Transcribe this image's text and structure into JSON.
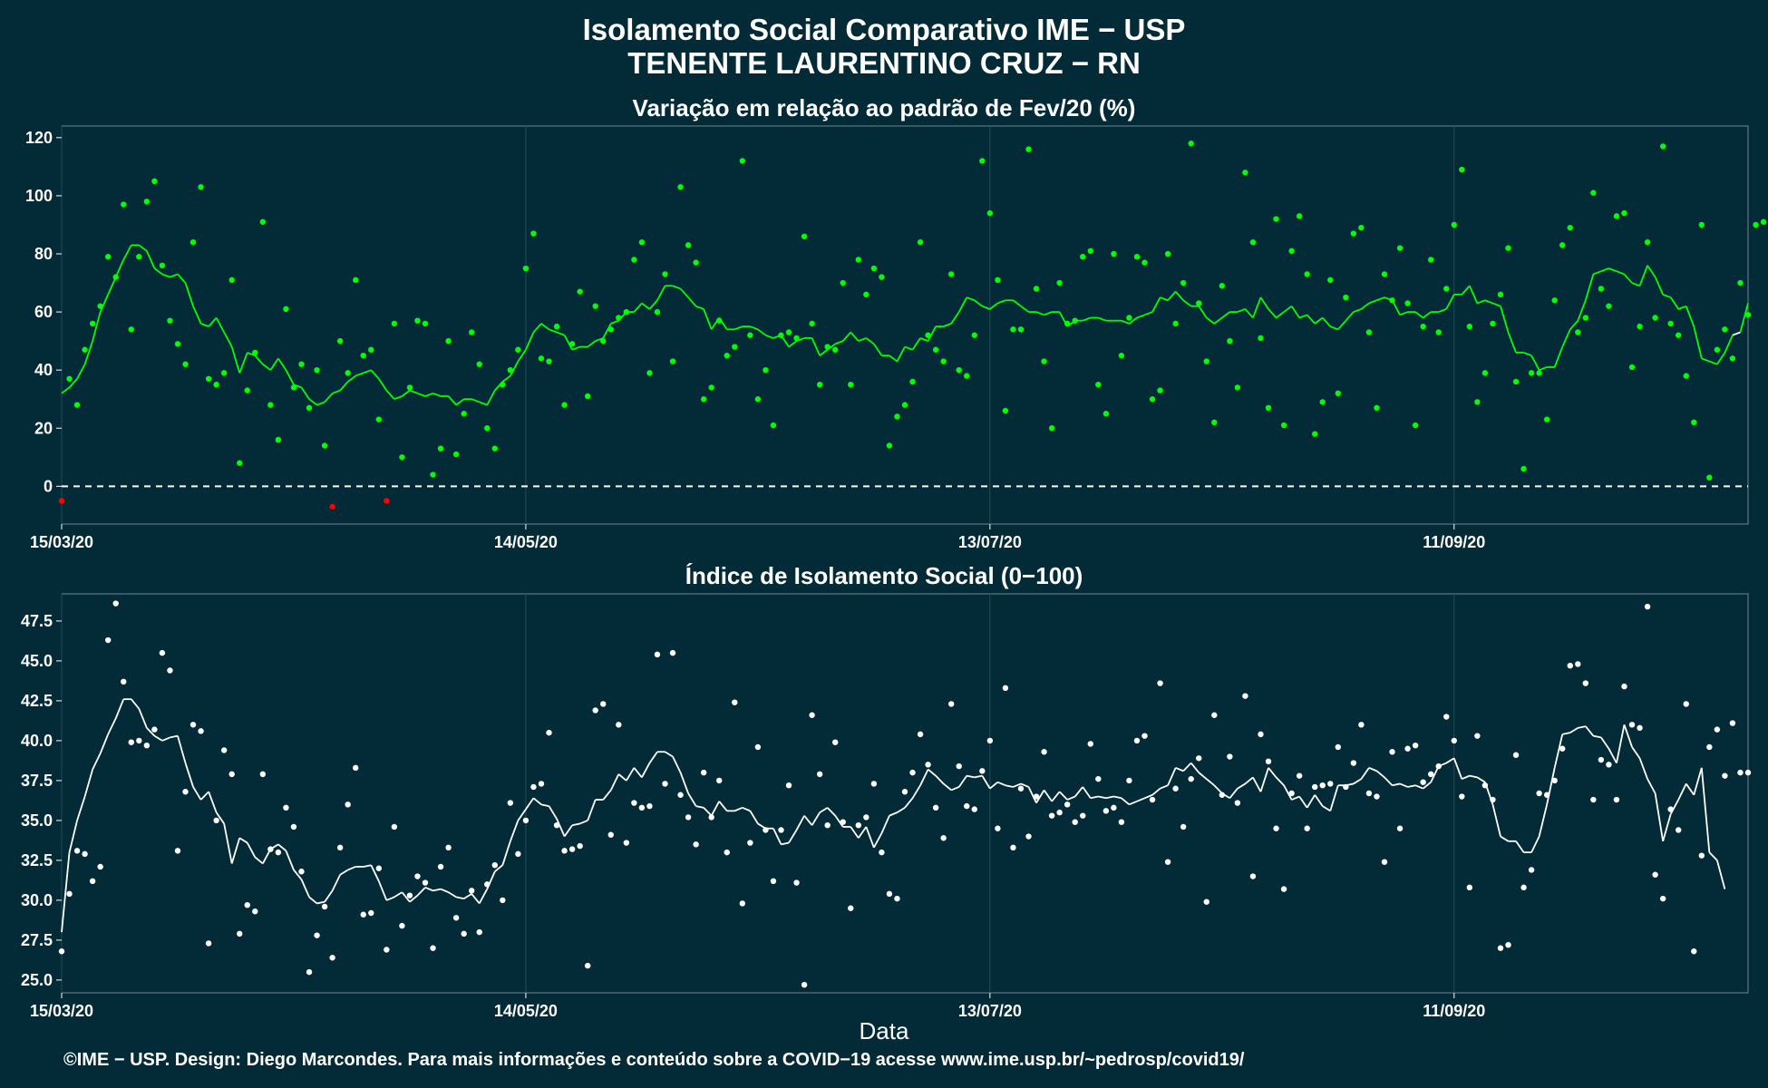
{
  "header": {
    "title_line1": "Isolamento Social Comparativo IME − USP",
    "title_line2": "TENENTE LAURENTINO CRUZ − RN"
  },
  "footer": "©IME − USP. Design: Diego Marcondes. Para mais informações e conteúdo sobre a COVID−19 acesse www.ime.usp.br/~pedrosp/covid19/",
  "colors": {
    "background": "#022a37",
    "top_points": "#00ff00",
    "top_negative": "#ff0000",
    "bottom_points": "#ffffff",
    "grid": "#284b57"
  },
  "chart_data": [
    {
      "type": "scatter",
      "title": "Variação em relação ao padrão de Fev/20 (%)",
      "xlabel": "",
      "ylabel": "",
      "x_tick_labels": [
        "15/03/20",
        "14/05/20",
        "13/07/20",
        "11/09/20"
      ],
      "x_tick_days": [
        0,
        60,
        120,
        180
      ],
      "y_ticks": [
        0,
        20,
        40,
        60,
        80,
        100,
        120
      ],
      "ylim": [
        -13,
        124
      ],
      "xlim": [
        0,
        218
      ],
      "zero_reference_line": 0,
      "series": [
        {
          "values": [
            -5,
            37,
            28,
            47,
            56,
            62,
            79,
            72,
            97,
            54,
            79,
            98,
            105,
            76,
            57,
            49,
            42,
            84,
            103,
            37,
            35,
            39,
            71,
            8,
            33,
            46,
            91,
            28,
            16,
            61,
            34,
            42,
            27,
            40,
            14,
            -7,
            50,
            39,
            71,
            45,
            47,
            23,
            -5,
            56,
            10,
            34,
            57,
            56,
            4,
            13,
            50,
            11,
            25,
            53,
            42,
            20,
            13,
            35,
            40,
            47,
            75,
            87,
            44,
            43,
            55,
            28,
            49,
            67,
            31,
            62,
            50,
            54,
            58,
            60,
            78,
            84,
            39,
            60,
            73,
            43,
            103,
            83,
            77,
            30,
            34,
            57,
            45,
            48,
            112,
            52,
            30,
            40,
            21,
            52,
            53,
            51,
            86,
            56,
            35,
            48,
            47,
            70,
            35,
            78,
            66,
            75,
            72,
            14,
            24,
            28,
            36,
            84,
            52,
            47,
            43,
            73,
            40,
            38,
            52,
            112,
            94,
            71,
            26,
            54,
            54,
            116,
            68,
            43,
            20,
            70,
            56,
            57,
            79,
            81,
            35,
            25,
            80,
            45,
            58,
            79,
            77,
            30,
            33,
            80,
            56,
            70,
            118,
            63,
            43,
            22,
            69,
            50,
            34,
            108,
            84,
            51,
            27,
            92,
            21,
            81,
            93,
            73,
            18,
            29,
            71,
            32,
            65,
            87,
            89,
            53,
            27,
            73,
            64,
            82,
            63,
            21,
            55,
            78,
            53,
            68,
            90,
            109,
            55,
            29,
            39,
            56,
            66,
            82,
            36,
            6,
            39,
            39,
            23,
            64,
            83,
            89,
            53,
            58,
            101,
            68,
            62,
            93,
            94,
            41,
            55,
            84,
            58,
            117,
            56,
            52,
            38,
            22,
            90,
            3,
            47,
            54,
            44,
            70,
            59,
            90,
            91
          ],
          "smoothed": [
            32,
            34,
            37,
            42,
            50,
            60,
            66,
            72,
            78,
            83,
            83,
            81,
            75,
            73,
            72,
            73,
            70,
            62,
            56,
            55,
            58,
            53,
            48,
            39,
            46,
            45,
            42,
            40,
            44,
            40,
            35,
            34,
            30,
            28,
            29,
            32,
            33,
            36,
            38,
            39,
            40,
            37,
            33,
            30,
            31,
            33,
            32,
            31,
            32,
            31,
            31,
            28,
            30,
            30,
            29,
            28,
            33,
            36,
            38,
            43,
            47,
            53,
            56,
            54,
            53,
            52,
            47,
            48,
            48,
            50,
            51,
            56,
            57,
            60,
            60,
            63,
            61,
            64,
            69,
            69,
            68,
            65,
            62,
            61,
            54,
            58,
            54,
            54,
            55,
            55,
            54,
            52,
            51,
            52,
            48,
            50,
            51,
            51,
            45,
            47,
            49,
            50,
            53,
            50,
            51,
            49,
            45,
            45,
            43,
            48,
            47,
            51,
            50,
            55,
            55,
            56,
            60,
            65,
            64,
            62,
            61,
            63,
            64,
            64,
            62,
            60,
            60,
            59,
            60,
            60,
            55,
            57,
            57,
            58,
            58,
            57,
            57,
            57,
            56,
            58,
            59,
            60,
            65,
            64,
            67,
            64,
            62,
            62,
            58,
            56,
            58,
            60,
            60,
            61,
            58,
            65,
            61,
            58,
            60,
            62,
            58,
            59,
            56,
            58,
            55,
            54,
            57,
            60,
            61,
            63,
            64,
            65,
            64,
            59,
            60,
            60,
            58,
            60,
            60,
            61,
            66,
            66,
            69,
            63,
            64,
            63,
            62,
            53,
            46,
            46,
            45,
            40,
            41,
            41,
            48,
            54,
            57,
            64,
            73,
            74,
            75,
            74,
            73,
            70,
            69,
            76,
            72,
            66,
            65,
            61,
            62,
            55,
            44,
            43,
            42,
            46,
            52,
            53,
            63
          ]
        }
      ]
    },
    {
      "type": "scatter",
      "title": "Índice de Isolamento Social (0−100)",
      "xlabel": "Data",
      "ylabel": "",
      "x_tick_labels": [
        "15/03/20",
        "14/05/20",
        "13/07/20",
        "11/09/20"
      ],
      "x_tick_days": [
        0,
        60,
        120,
        180
      ],
      "y_ticks": [
        "25.0",
        "27.5",
        "30.0",
        "32.5",
        "35.0",
        "37.5",
        "40.0",
        "42.5",
        "45.0",
        "47.5"
      ],
      "ylim": [
        24.2,
        49.2
      ],
      "xlim": [
        0,
        218
      ],
      "series": [
        {
          "values": [
            26.8,
            30.4,
            33.1,
            32.9,
            31.2,
            32.1,
            46.3,
            48.6,
            43.7,
            39.9,
            40.0,
            39.7,
            40.7,
            45.5,
            44.4,
            33.1,
            36.8,
            41.0,
            40.6,
            27.3,
            35.0,
            39.4,
            37.9,
            27.9,
            29.7,
            29.3,
            37.9,
            33.2,
            33.0,
            35.8,
            34.6,
            31.8,
            25.5,
            27.8,
            29.6,
            26.4,
            33.3,
            36.0,
            38.3,
            29.1,
            29.2,
            32.0,
            26.9,
            34.6,
            28.4,
            30.3,
            31.5,
            31.1,
            27.0,
            32.1,
            33.3,
            28.9,
            27.9,
            30.6,
            28.0,
            31.0,
            32.2,
            30.0,
            36.1,
            32.9,
            35.0,
            37.1,
            37.3,
            40.5,
            34.7,
            33.1,
            33.2,
            33.4,
            25.9,
            41.9,
            42.3,
            34.1,
            41.0,
            33.6,
            36.1,
            35.8,
            35.9,
            45.4,
            37.3,
            45.5,
            36.6,
            35.2,
            33.5,
            38.0,
            35.2,
            37.5,
            33.0,
            42.4,
            29.8,
            33.6,
            39.6,
            34.4,
            31.2,
            34.4,
            37.2,
            31.1,
            24.7,
            41.6,
            37.9,
            34.7,
            39.9,
            34.9,
            29.5,
            34.7,
            35.2,
            37.3,
            33.0,
            30.4,
            30.1,
            36.8,
            38.0,
            40.4,
            38.5,
            35.8,
            33.9,
            42.3,
            38.4,
            35.9,
            35.7,
            38.1,
            40.0,
            34.5,
            43.3,
            33.3,
            37.0,
            34.0,
            36.5,
            39.3,
            35.3,
            35.5,
            36.0,
            34.9,
            35.3,
            39.8,
            37.6,
            35.6,
            35.8,
            34.9,
            37.5,
            40.0,
            40.3,
            36.3,
            43.6,
            32.4,
            37.0,
            34.6,
            37.6,
            38.9,
            29.9,
            41.6,
            36.6,
            39.0,
            36.1,
            42.8,
            31.5,
            40.4,
            38.7,
            34.5,
            30.7,
            36.7,
            37.8,
            34.5,
            37.1,
            37.2,
            37.3,
            39.6,
            37.1,
            38.6,
            41.0,
            36.7,
            36.5,
            32.4,
            39.3,
            34.5,
            39.5,
            39.7,
            37.4,
            37.9,
            38.4,
            41.5,
            40.0,
            36.5,
            30.8,
            40.3,
            37.2,
            36.3,
            27.0,
            27.2,
            39.1,
            30.8,
            31.9,
            36.7,
            36.6,
            37.5,
            39.5,
            44.7,
            44.8,
            43.6,
            36.3,
            38.8,
            38.5,
            36.3,
            43.4,
            41.0,
            40.8,
            48.4,
            31.6,
            30.1,
            35.7,
            34.4,
            42.3,
            26.8,
            32.8,
            39.6,
            40.7,
            37.8,
            41.1,
            38.0,
            38.0
          ],
          "smoothed": [
            28.0,
            33.0,
            35.0,
            36.5,
            38.2,
            39.2,
            40.4,
            41.4,
            42.6,
            42.6,
            42.0,
            40.8,
            40.3,
            40.0,
            40.2,
            40.3,
            38.6,
            37.1,
            36.3,
            36.8,
            35.5,
            34.8,
            32.3,
            33.9,
            33.6,
            32.7,
            32.3,
            33.2,
            33.5,
            33.1,
            31.9,
            31.3,
            30.2,
            29.8,
            29.9,
            30.6,
            31.6,
            31.9,
            32.1,
            32.1,
            32.2,
            31.2,
            30.0,
            30.2,
            30.5,
            29.9,
            30.3,
            30.8,
            30.6,
            30.7,
            30.5,
            30.2,
            30.1,
            30.4,
            29.8,
            30.7,
            31.8,
            32.2,
            33.7,
            35.0,
            35.7,
            36.4,
            36.0,
            35.9,
            35.1,
            34.0,
            34.7,
            34.8,
            35.0,
            36.3,
            36.3,
            36.9,
            37.9,
            37.5,
            38.3,
            37.7,
            38.6,
            39.3,
            39.3,
            39.0,
            38.0,
            36.7,
            35.9,
            35.8,
            35.3,
            36.2,
            35.6,
            35.6,
            35.8,
            35.6,
            34.8,
            34.5,
            34.5,
            33.5,
            33.6,
            34.4,
            35.3,
            34.7,
            35.5,
            35.8,
            35.3,
            34.6,
            34.6,
            33.9,
            34.6,
            33.3,
            34.2,
            35.3,
            35.5,
            35.8,
            36.4,
            37.2,
            38.2,
            37.8,
            37.3,
            36.9,
            37.1,
            37.8,
            37.7,
            37.8,
            37.0,
            37.4,
            37.2,
            37.1,
            37.3,
            37.1,
            36.1,
            36.9,
            36.2,
            36.8,
            36.3,
            36.5,
            37.1,
            36.4,
            36.5,
            36.4,
            36.5,
            36.4,
            36.0,
            36.2,
            36.4,
            36.6,
            37.0,
            37.2,
            38.3,
            38.1,
            38.6,
            38.0,
            37.6,
            37.2,
            36.7,
            36.4,
            37.0,
            37.3,
            37.7,
            36.8,
            38.3,
            37.7,
            37.2,
            36.3,
            36.5,
            35.8,
            36.6,
            35.9,
            35.6,
            37.2,
            37.2,
            37.3,
            37.6,
            38.3,
            38.1,
            37.7,
            37.2,
            37.3,
            37.1,
            37.2,
            37.0,
            37.4,
            38.4,
            38.6,
            38.9,
            37.6,
            37.8,
            37.7,
            37.4,
            36.0,
            34.0,
            33.7,
            33.7,
            33.0,
            33.0,
            34.0,
            36.0,
            38.3,
            40.4,
            40.5,
            40.8,
            40.9,
            40.3,
            40.2,
            39.5,
            38.6,
            41.0,
            39.6,
            38.9,
            37.6,
            36.7,
            33.7,
            35.4,
            36.3,
            37.3,
            36.6,
            38.3,
            33.0,
            32.5,
            30.7
          ]
        }
      ]
    }
  ]
}
